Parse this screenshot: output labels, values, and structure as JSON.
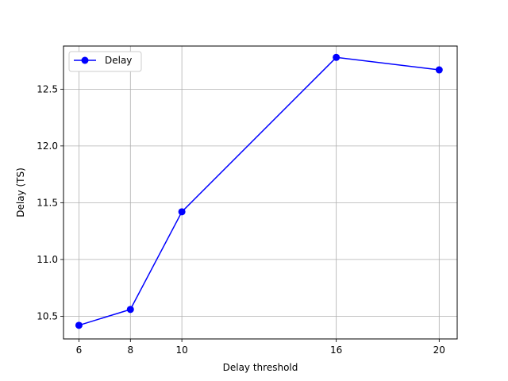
{
  "chart_data": {
    "type": "line",
    "title": "",
    "xlabel": "Delay threshold",
    "ylabel": "Delay (TS)",
    "x": [
      6,
      8,
      10,
      16,
      20
    ],
    "series": [
      {
        "name": "Delay",
        "values": [
          10.42,
          10.56,
          11.42,
          12.78,
          12.67
        ],
        "color": "#0000ff",
        "marker": "circle"
      }
    ],
    "xlim": [
      5.4,
      20.7
    ],
    "ylim": [
      10.3,
      12.88
    ],
    "xticks": [
      6,
      8,
      10,
      16,
      20
    ],
    "yticks": [
      10.5,
      11.0,
      11.5,
      12.0,
      12.5
    ],
    "ytick_labels": [
      "10.5",
      "11.0",
      "11.5",
      "12.0",
      "12.5"
    ],
    "grid": true,
    "legend_position": "upper-left"
  }
}
